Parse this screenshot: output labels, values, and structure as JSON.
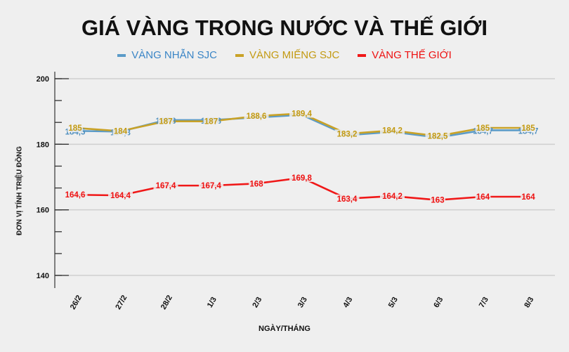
{
  "title": "GIÁ VÀNG TRONG NƯỚC VÀ THẾ GIỚI",
  "legend": [
    {
      "label": "VÀNG NHẪN SJC",
      "color": "#5b9bc8",
      "text_color": "#3a85c6"
    },
    {
      "label": "VÀNG MIẾNG SJC",
      "color": "#c9a227",
      "text_color": "#c39a12"
    },
    {
      "label": "VÀNG THẾ GIỚI",
      "color": "#f01818",
      "text_color": "#ee1111"
    }
  ],
  "axes": {
    "ylabel": "ĐƠN VỊ TÍNH TRIỆU ĐỒNG",
    "xlabel": "NGÀY/THÁNG",
    "yticks": [
      200,
      180,
      160,
      140
    ]
  },
  "chart_data": {
    "type": "line",
    "title": "GIÁ VÀNG TRONG NƯỚC VÀ THẾ GIỚI",
    "xlabel": "NGÀY/THÁNG",
    "ylabel": "ĐƠN VỊ TÍNH TRIỆU ĐỒNG",
    "categories": [
      "26/2",
      "27/2",
      "28/2",
      "1/3",
      "2/3",
      "3/3",
      "4/3",
      "5/3",
      "6/3",
      "7/3",
      "8/3"
    ],
    "ylim": [
      140,
      200
    ],
    "yticks": [
      140,
      160,
      180,
      200
    ],
    "grid": true,
    "legend_position": "top",
    "series": [
      {
        "name": "VÀNG NHẪN SJC",
        "color": "#5b9bc8",
        "values": [
          184.5,
          184.3,
          187.8,
          187.8,
          188.6,
          189.4,
          183.2,
          184.2,
          182.5,
          184.7,
          184.7
        ],
        "labels": [
          "184,5",
          "184,3",
          "187,8",
          "187,8",
          "",
          "",
          "",
          "",
          "",
          "184,7",
          "184,7"
        ]
      },
      {
        "name": "VÀNG MIẾNG SJC",
        "color": "#c9a227",
        "values": [
          185,
          184,
          187,
          187,
          188.6,
          189.4,
          183.2,
          184.2,
          182.5,
          185,
          185
        ],
        "labels": [
          "185",
          "184",
          "187",
          "187",
          "188,6",
          "189,4",
          "183,2",
          "184,2",
          "182,5",
          "185",
          "185"
        ]
      },
      {
        "name": "VÀNG THẾ GIỚI",
        "color": "#f01818",
        "values": [
          164.6,
          164.4,
          167.4,
          167.4,
          168,
          169.8,
          163.4,
          164.2,
          163,
          164,
          164
        ],
        "labels": [
          "164,6",
          "164,4",
          "167,4",
          "167,4",
          "168",
          "169,8",
          "163,4",
          "164,2",
          "163",
          "164",
          "164"
        ]
      }
    ]
  }
}
